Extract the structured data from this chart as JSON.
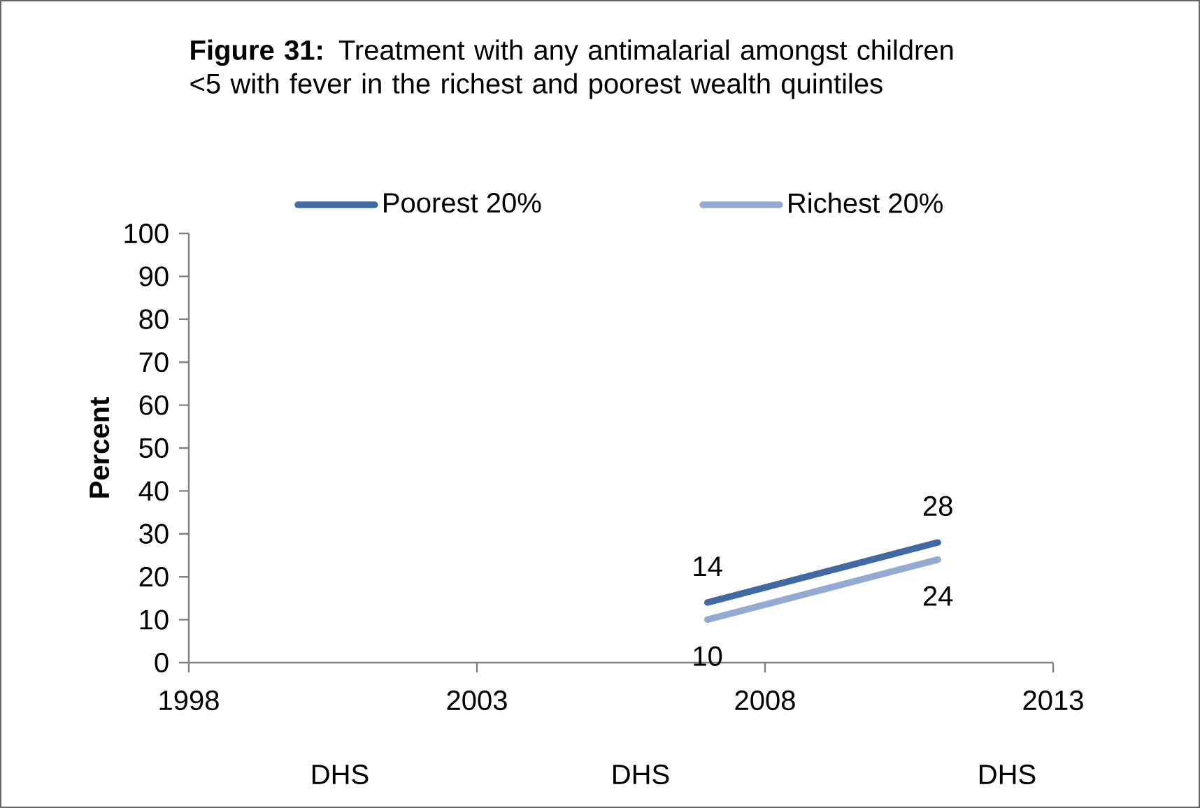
{
  "chart_data": {
    "type": "line",
    "title": "**Figure 31:** Treatment with any antimalarial amongst children <5 with fever in the richest and poorest wealth quintiles",
    "ylabel": "Percent",
    "series": [
      {
        "name": "Poorest 20%",
        "color": "#4169a3",
        "values": [
          14,
          28
        ]
      },
      {
        "name": "Richest 20%",
        "color": "#93abd2",
        "values": [
          10,
          24
        ]
      }
    ],
    "x": [
      2007,
      2011
    ],
    "xlim": [
      1998,
      2013
    ],
    "xticks": [
      1998,
      2003,
      2008,
      2013
    ],
    "ylim": [
      0,
      100
    ],
    "yticks": [
      0,
      10,
      20,
      30,
      40,
      50,
      60,
      70,
      80,
      90,
      100
    ],
    "data_labels": true,
    "legend": "top",
    "grid": false,
    "marker": "none",
    "line_style": "solid",
    "annotations": [
      "DHS",
      "DHS",
      "DHS"
    ]
  }
}
